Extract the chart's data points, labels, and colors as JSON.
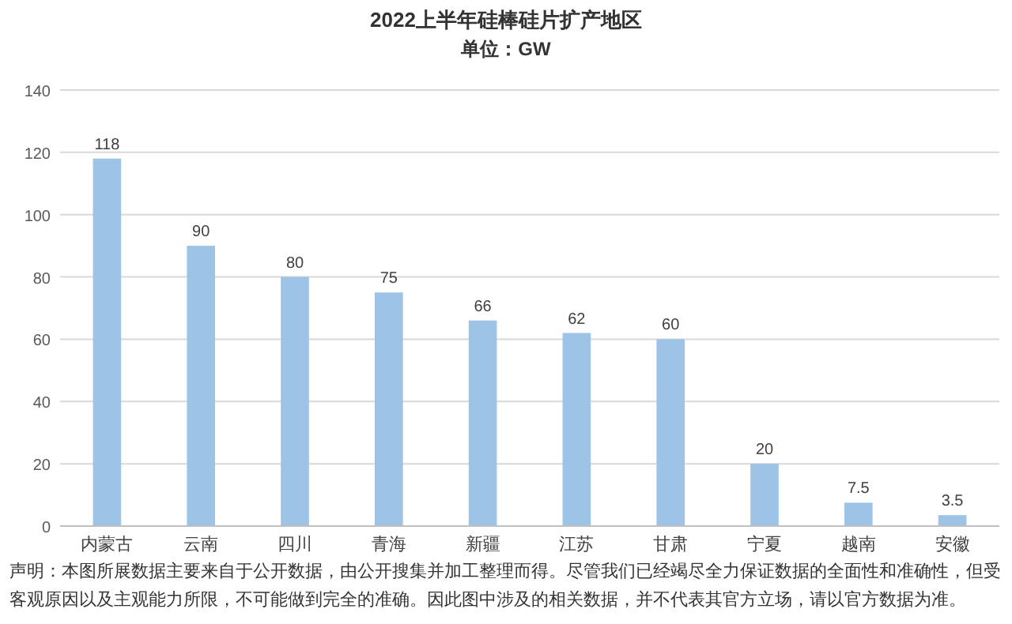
{
  "chart_data": {
    "type": "bar",
    "title": "2022上半年硅棒硅片扩产地区",
    "subtitle": "单位：GW",
    "categories": [
      "内蒙古",
      "云南",
      "四川",
      "青海",
      "新疆",
      "江苏",
      "甘肃",
      "宁夏",
      "越南",
      "安徽"
    ],
    "values": [
      118,
      90,
      80,
      75,
      66,
      62,
      60,
      20,
      7.5,
      3.5
    ],
    "color": "#9dc3e6",
    "ylim": [
      0,
      140
    ],
    "yticks": [
      0,
      20,
      40,
      60,
      80,
      100,
      120,
      140
    ],
    "grid": "y",
    "data_labels": true,
    "annotations": [
      "声明：本图所展数据主要来自于公开数据，由公开搜集并加工整理而得。尽管我们已经竭尽全力保证数据的全面性和准确性，但受客观原因以及主观能力所限，不可能做到完全的准确。因此图中涉及的相关数据，并不代表其官方立场，请以官方数据为准。"
    ]
  }
}
